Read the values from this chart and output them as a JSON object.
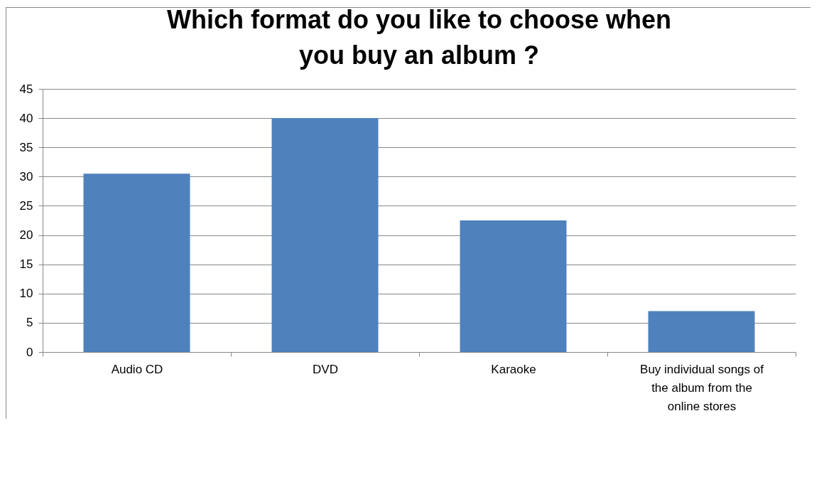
{
  "chart_data": {
    "type": "bar",
    "title": "Which format do you like to choose when you buy an album ?",
    "categories": [
      "Audio CD",
      "DVD",
      "Karaoke",
      "Buy individual songs of the album from the online stores"
    ],
    "values": [
      30.5,
      40,
      22.5,
      7
    ],
    "color": "#4f81bd",
    "ylim": [
      0,
      45
    ],
    "yticks": [
      0,
      5,
      10,
      15,
      20,
      25,
      30,
      35,
      40,
      45
    ],
    "grid": "y"
  }
}
